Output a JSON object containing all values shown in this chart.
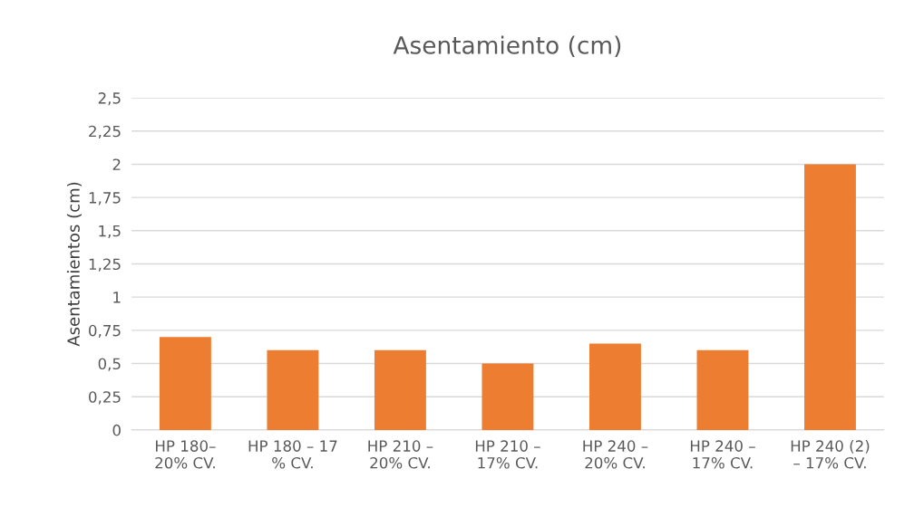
{
  "chart_data": {
    "type": "bar",
    "title": "Asentamiento (cm)",
    "ylabel": "Asentamientos (cm)",
    "categories": [
      "HP 180–\n20% CV.",
      "HP 180 – 17\n% CV.",
      "HP 210 –\n20% CV.",
      "HP 210 –\n17% CV.",
      "HP 240 –\n20% CV.",
      "HP 240 –\n17% CV.",
      "HP 240 (2)\n– 17% CV."
    ],
    "values": [
      0.7,
      0.6,
      0.6,
      0.5,
      0.65,
      0.6,
      2.0
    ],
    "color": "#ed7d31",
    "ylim": [
      0,
      2.5
    ],
    "yticks": [
      0,
      {
        "value": 0.25,
        "label": "0,25"
      },
      {
        "value": 0.5,
        "label": "0,5"
      },
      {
        "value": 0.75,
        "label": "0,75"
      },
      1,
      {
        "value": 1.25,
        "label": "1,25"
      },
      {
        "value": 1.5,
        "label": "1,5"
      },
      {
        "value": 1.75,
        "label": "1,75"
      },
      2,
      {
        "value": 2.25,
        "label": "2,25"
      },
      {
        "value": 2.5,
        "label": "2,5"
      }
    ],
    "grid": "y",
    "legend": false
  }
}
